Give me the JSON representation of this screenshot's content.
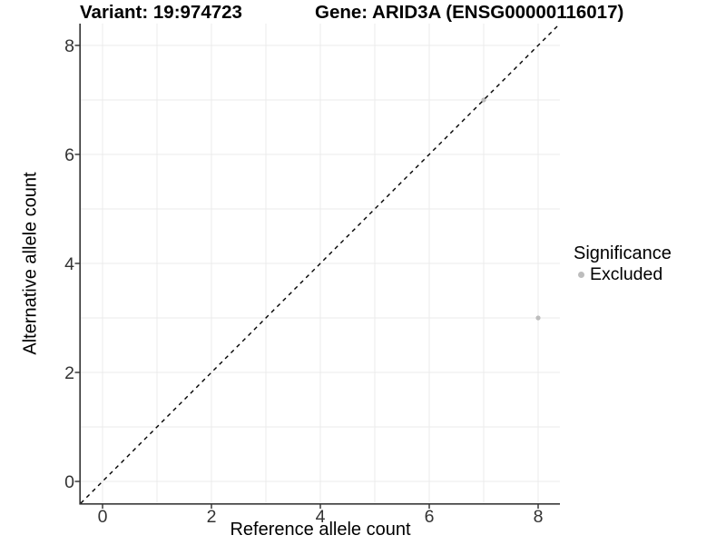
{
  "chart_data": {
    "type": "scatter",
    "title_left": "Variant: 19:974723",
    "title_right": "Gene: ARID3A (ENSG00000116017)",
    "xlabel": "Reference allele count",
    "ylabel": "Alternative allele count",
    "xlim": [
      -0.4,
      8.4
    ],
    "ylim": [
      -0.4,
      8.4
    ],
    "x_ticks": [
      0,
      2,
      4,
      6,
      8
    ],
    "y_ticks": [
      0,
      2,
      4,
      6,
      8
    ],
    "grid_breaks": [
      0,
      1,
      2,
      3,
      4,
      5,
      6,
      7,
      8
    ],
    "grid": true,
    "points": [
      {
        "x": 7,
        "y": 7,
        "significance": "Excluded"
      },
      {
        "x": 8,
        "y": 3,
        "significance": "Excluded"
      }
    ],
    "identity_line": {
      "style": "dashed",
      "from": -0.4,
      "to": 8.4
    },
    "legend": {
      "title": "Significance",
      "position": "right",
      "items": [
        {
          "label": "Excluded",
          "color": "#bdbdbd"
        }
      ]
    },
    "colors": {
      "point": "#bdbdbd",
      "grid": "#ebebeb",
      "axis": "#3a3a3a",
      "tick_label": "#333333",
      "dashed_line": "#000000"
    }
  }
}
